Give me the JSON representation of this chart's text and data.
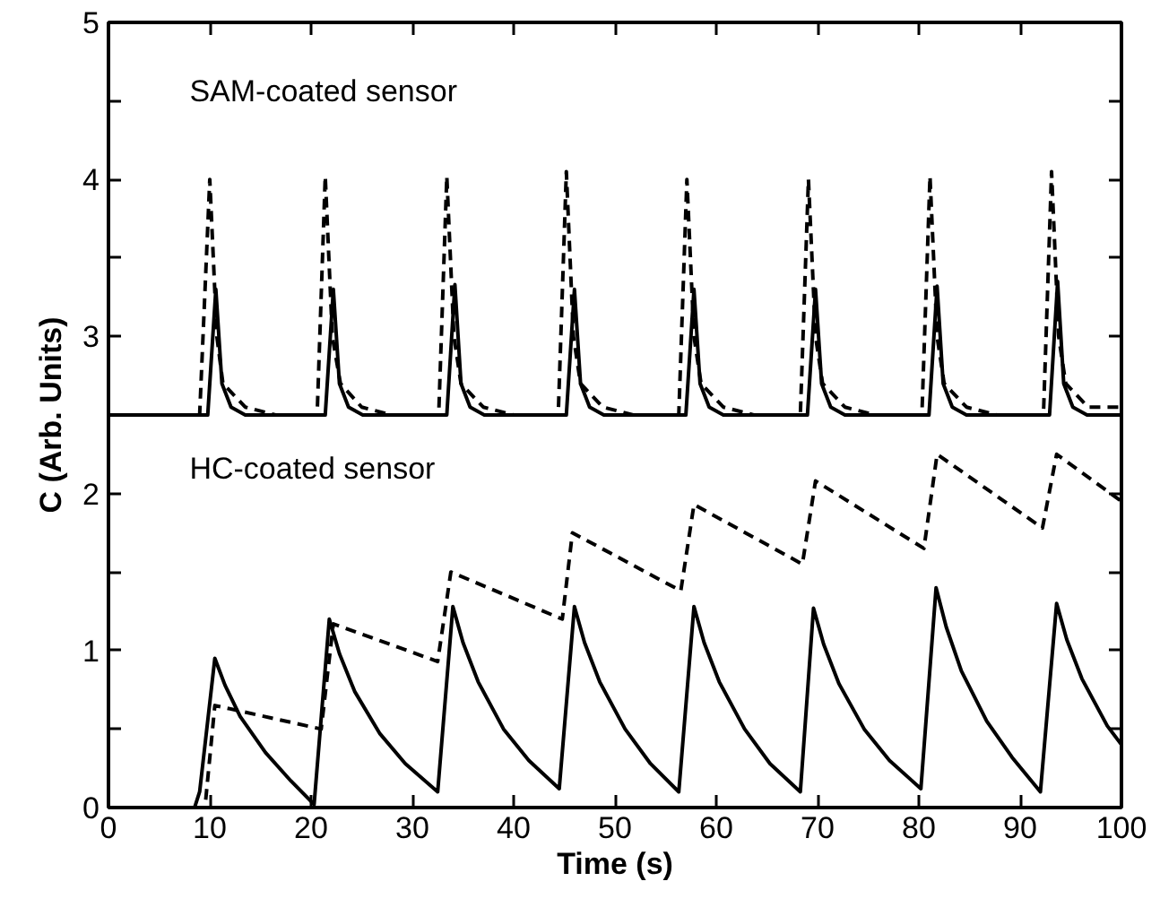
{
  "chart_data": {
    "type": "line",
    "xlabel": "Time (s)",
    "ylabel": "C (Arb. Units)",
    "xlim": [
      0,
      100
    ],
    "ylim": [
      0,
      5
    ],
    "xticks": [
      0,
      10,
      20,
      30,
      40,
      50,
      60,
      70,
      80,
      90,
      100
    ],
    "yticks": [
      0,
      {
        "value": 0.5,
        "label": null
      },
      1,
      {
        "value": 1.5,
        "label": null
      },
      2,
      {
        "value": 2.5,
        "label": null
      },
      3,
      {
        "value": 3.5,
        "label": null
      },
      4,
      {
        "value": 4.5,
        "label": null
      },
      5
    ],
    "grid": false,
    "marker": "none",
    "annotations": [
      "SAM-coated sensor",
      "HC-coated sensor"
    ],
    "series": [
      {
        "color": "#000000",
        "line_style": "solid",
        "x": [
          0,
          9.8,
          10.6,
          11.2,
          12.1,
          13.5,
          21.4,
          22.2,
          22.8,
          23.7,
          25.1,
          33.4,
          34.2,
          34.8,
          35.7,
          37.1,
          45.2,
          46.0,
          46.6,
          47.5,
          48.9,
          57.0,
          57.8,
          58.4,
          59.3,
          60.7,
          69.0,
          69.8,
          70.4,
          71.3,
          72.7,
          81.0,
          81.8,
          82.4,
          83.3,
          84.7,
          92.9,
          93.7,
          94.3,
          95.2,
          96.6,
          100
        ],
        "values": [
          2.5,
          2.5,
          3.3,
          2.7,
          2.55,
          2.5,
          2.5,
          3.3,
          2.7,
          2.55,
          2.5,
          2.5,
          3.33,
          2.7,
          2.55,
          2.5,
          2.5,
          3.3,
          2.7,
          2.55,
          2.5,
          2.5,
          3.3,
          2.7,
          2.55,
          2.5,
          2.5,
          3.3,
          2.7,
          2.55,
          2.5,
          2.5,
          3.32,
          2.7,
          2.55,
          2.5,
          2.5,
          3.35,
          2.7,
          2.55,
          2.5,
          2.5
        ]
      },
      {
        "color": "#000000",
        "line_style": "dashed",
        "x": [
          0,
          9.0,
          10.0,
          10.7,
          11.3,
          13.5,
          16.5,
          20.6,
          21.4,
          22.1,
          22.9,
          25.0,
          28.0,
          32.6,
          33.4,
          34.1,
          34.8,
          37.0,
          40.0,
          44.4,
          45.2,
          45.9,
          46.6,
          48.8,
          51.8,
          56.3,
          57.1,
          57.8,
          58.5,
          60.7,
          63.7,
          68.3,
          69.1,
          69.8,
          70.5,
          72.7,
          75.7,
          80.3,
          81.1,
          81.8,
          82.5,
          84.7,
          87.7,
          92.3,
          93.1,
          93.8,
          94.5,
          96.7,
          100
        ],
        "values": [
          2.5,
          2.5,
          4.0,
          3.0,
          2.7,
          2.55,
          2.5,
          2.5,
          4.02,
          3.0,
          2.7,
          2.55,
          2.5,
          2.5,
          4.02,
          3.0,
          2.7,
          2.55,
          2.5,
          2.5,
          4.05,
          3.0,
          2.7,
          2.55,
          2.5,
          2.5,
          4.0,
          3.0,
          2.7,
          2.55,
          2.5,
          2.5,
          4.0,
          3.0,
          2.7,
          2.55,
          2.5,
          2.5,
          4.02,
          3.0,
          2.7,
          2.55,
          2.5,
          2.5,
          4.05,
          3.0,
          2.7,
          2.55,
          2.55
        ]
      },
      {
        "color": "#000000",
        "line_style": "solid",
        "x": [
          0,
          8.5,
          9.0,
          10.5,
          11.5,
          13,
          15.5,
          18,
          20.3,
          21.8,
          22.8,
          24.3,
          26.8,
          29.3,
          32.5,
          34,
          35,
          36.5,
          39,
          41.5,
          44.5,
          46,
          47,
          48.5,
          51,
          53.5,
          56.3,
          57.8,
          58.8,
          60.3,
          62.8,
          65.3,
          68.3,
          69.6,
          70.6,
          72.1,
          74.6,
          77.1,
          80.2,
          81.7,
          82.7,
          84.2,
          86.7,
          89.2,
          92,
          93.6,
          94.6,
          96.1,
          98.6,
          100
        ],
        "values": [
          0,
          0,
          0.1,
          0.95,
          0.78,
          0.58,
          0.35,
          0.17,
          0.02,
          1.2,
          0.98,
          0.74,
          0.47,
          0.28,
          0.1,
          1.28,
          1.05,
          0.8,
          0.5,
          0.3,
          0.12,
          1.28,
          1.05,
          0.8,
          0.5,
          0.28,
          0.1,
          1.28,
          1.05,
          0.8,
          0.5,
          0.28,
          0.1,
          1.27,
          1.04,
          0.79,
          0.5,
          0.3,
          0.12,
          1.4,
          1.15,
          0.87,
          0.55,
          0.32,
          0.1,
          1.3,
          1.07,
          0.82,
          0.52,
          0.4
        ]
      },
      {
        "color": "#000000",
        "line_style": "dashed",
        "x": [
          9.6,
          10.5,
          21.0,
          22.2,
          32.5,
          33.8,
          44.8,
          45.8,
          56.5,
          57.8,
          68.5,
          69.8,
          80.5,
          81.8,
          92.2,
          93.6,
          100
        ],
        "values": [
          0.05,
          0.65,
          0.5,
          1.17,
          0.93,
          1.5,
          1.2,
          1.75,
          1.38,
          1.93,
          1.55,
          2.08,
          1.65,
          2.25,
          1.78,
          2.25,
          1.95
        ]
      }
    ]
  }
}
